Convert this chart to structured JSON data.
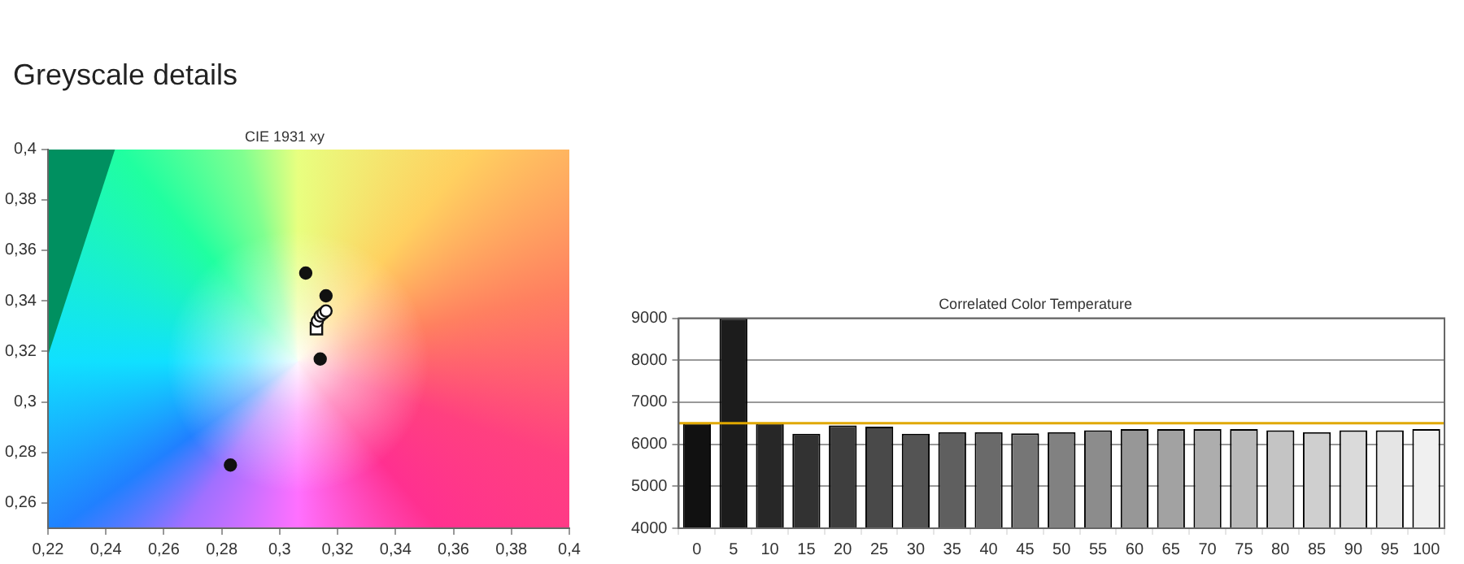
{
  "chart_data": [
    {
      "type": "scatter",
      "title": "Greyscale details",
      "subtitle": "CIE 1931 xy",
      "xlim": [
        0.22,
        0.4
      ],
      "xticks": [
        {
          "value": 0.22,
          "label": "0,22"
        },
        {
          "value": 0.24,
          "label": "0,24"
        },
        {
          "value": 0.26,
          "label": "0,26"
        },
        {
          "value": 0.28,
          "label": "0,28"
        },
        {
          "value": 0.3,
          "label": "0,3"
        },
        {
          "value": 0.32,
          "label": "0,32"
        },
        {
          "value": 0.34,
          "label": "0,34"
        },
        {
          "value": 0.36,
          "label": "0,36"
        },
        {
          "value": 0.38,
          "label": "0,38"
        },
        {
          "value": 0.4,
          "label": "0,4"
        }
      ],
      "ylim": [
        0.25,
        0.4
      ],
      "yticks": [
        {
          "value": 0.26,
          "label": "0,26"
        },
        {
          "value": 0.28,
          "label": "0,28"
        },
        {
          "value": 0.3,
          "label": "0,3"
        },
        {
          "value": 0.32,
          "label": "0,32"
        },
        {
          "value": 0.34,
          "label": "0,34"
        },
        {
          "value": 0.36,
          "label": "0,36"
        },
        {
          "value": 0.38,
          "label": "0,38"
        },
        {
          "value": 0.4,
          "label": "0,4"
        }
      ],
      "grid": false,
      "legend": false,
      "series": [
        {
          "color": "#111111",
          "marker": "circle",
          "x": [
            0.309,
            0.316,
            0.314,
            0.283
          ],
          "values": [
            0.351,
            0.342,
            0.317,
            0.275
          ]
        },
        {
          "color": "#ffffff",
          "marker": "circle",
          "x": [
            0.313,
            0.314,
            0.315,
            0.316
          ],
          "values": [
            0.332,
            0.334,
            0.335,
            0.336
          ]
        },
        {
          "color": "#ffffff",
          "marker": "square",
          "x": [
            0.3127
          ],
          "values": [
            0.329
          ]
        }
      ]
    },
    {
      "type": "bar",
      "title": "Correlated Color Temperature",
      "categories": [
        "0",
        "5",
        "10",
        "15",
        "20",
        "25",
        "30",
        "35",
        "40",
        "45",
        "50",
        "55",
        "60",
        "65",
        "70",
        "75",
        "80",
        "85",
        "90",
        "95",
        "100"
      ],
      "values": [
        6500,
        9000,
        6500,
        6250,
        6450,
        6420,
        6250,
        6290,
        6290,
        6260,
        6290,
        6330,
        6360,
        6360,
        6360,
        6360,
        6330,
        6290,
        6330,
        6330,
        6360
      ],
      "colors": [
        "#111111",
        "#1c1c1c",
        "#272727",
        "#323232",
        "#3e3e3e",
        "#494949",
        "#545454",
        "#5f5f5f",
        "#6a6a6a",
        "#767676",
        "#818181",
        "#8c8c8c",
        "#979797",
        "#a2a2a2",
        "#adadad",
        "#b9b9b9",
        "#c4c4c4",
        "#cfcfcf",
        "#dadada",
        "#e5e5e5",
        "#f0f0f0"
      ],
      "ylim": [
        4000,
        9000
      ],
      "yticks": [
        4000,
        5000,
        6000,
        7000,
        8000,
        9000
      ],
      "grid": "y",
      "legend": false,
      "ref_lines": [
        {
          "axis": "y",
          "value": 6500,
          "color": "#e0a800"
        }
      ]
    }
  ]
}
